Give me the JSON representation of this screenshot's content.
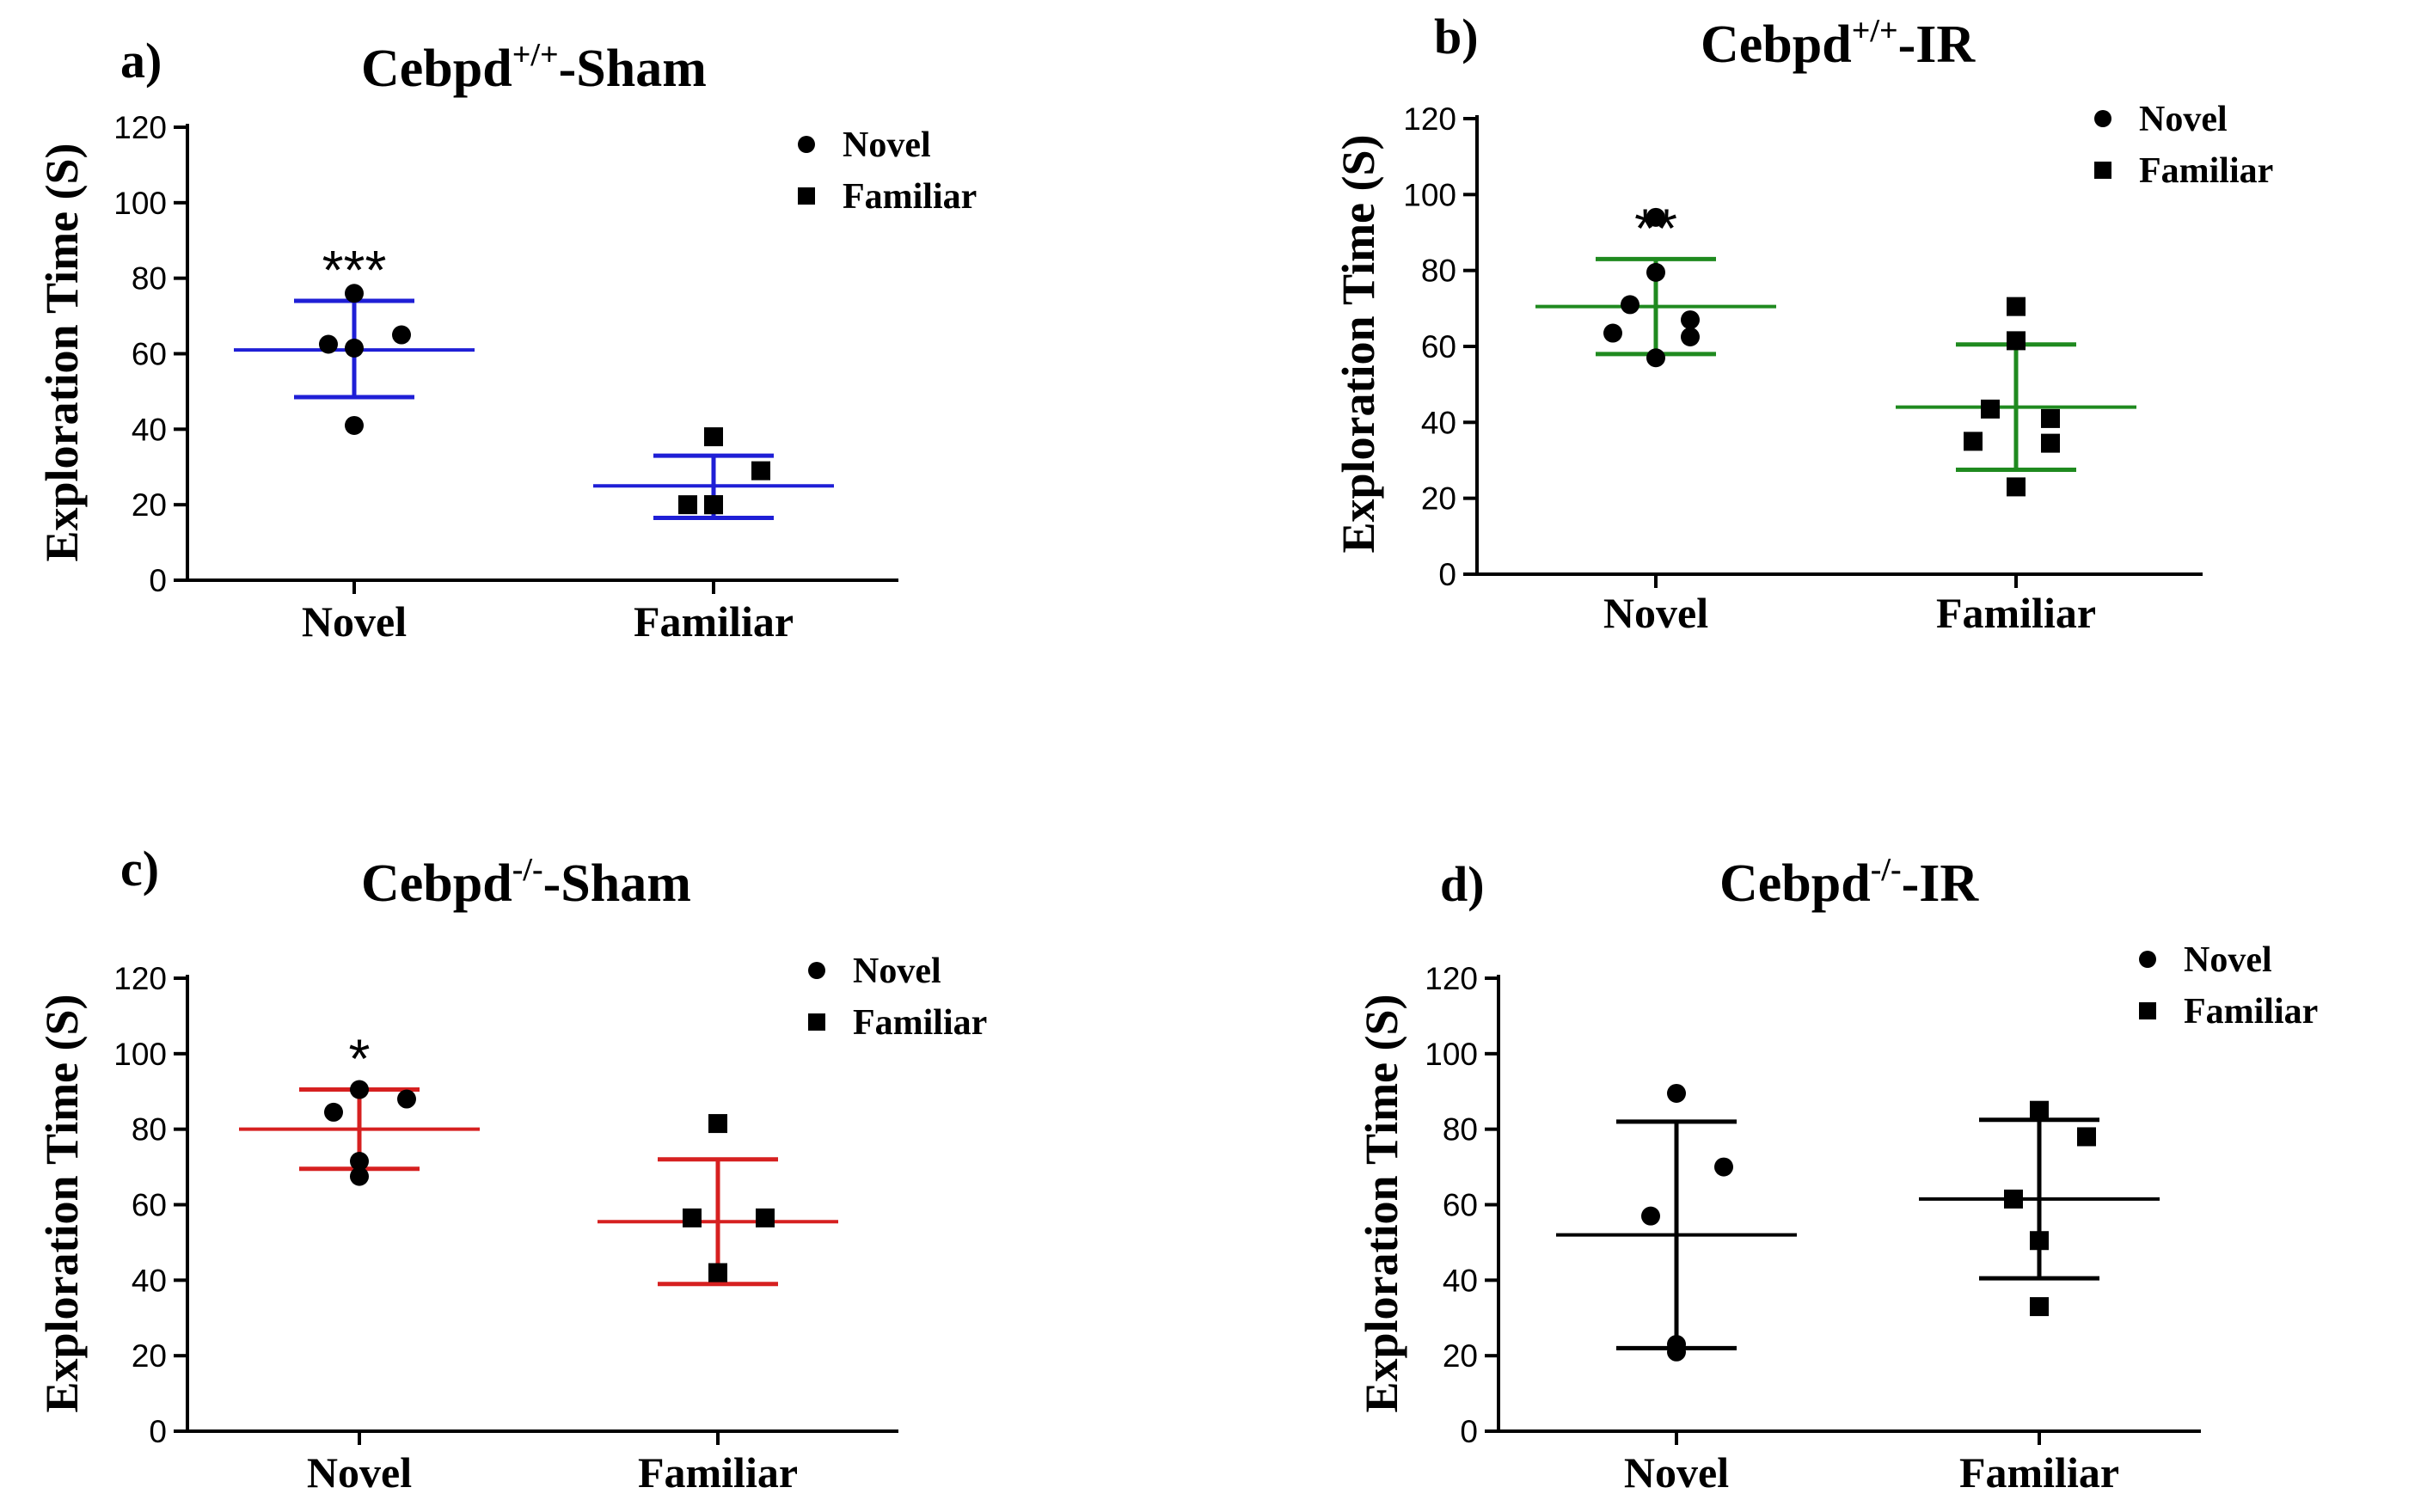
{
  "chart_data": [
    {
      "type": "scatter",
      "panel_label": "a)",
      "title": "Cebpd",
      "title_superscript": "+/+",
      "title_suffix": "-Sham",
      "ylabel": "Exploration Time  (S)",
      "xlabel": "",
      "ylim": [
        0,
        120
      ],
      "yticks": [
        0,
        20,
        40,
        60,
        80,
        100,
        120
      ],
      "categories": [
        "Novel",
        "Familiar"
      ],
      "color": "#1f1fd6",
      "series": [
        {
          "name": "Novel",
          "marker": "circle",
          "values": [
            76,
            65,
            62.5,
            61.5,
            41
          ],
          "mean": 61,
          "error_low": 48.5,
          "error_high": 74,
          "significance": "***"
        },
        {
          "name": "Familiar",
          "marker": "square",
          "values": [
            38,
            29,
            20,
            20,
            20
          ],
          "mean": 25,
          "error_low": 16.5,
          "error_high": 33,
          "significance": ""
        }
      ],
      "legend": [
        "Novel",
        "Familiar"
      ],
      "legend_position": "top-right"
    },
    {
      "type": "scatter",
      "panel_label": "b)",
      "title": "Cebpd",
      "title_superscript": "+/+",
      "title_suffix": "-IR",
      "ylabel": "Exploration Time  (S)",
      "xlabel": "",
      "ylim": [
        0,
        120
      ],
      "yticks": [
        0,
        20,
        40,
        60,
        80,
        100,
        120
      ],
      "categories": [
        "Novel",
        "Familiar"
      ],
      "color": "#1f8a1f",
      "series": [
        {
          "name": "Novel",
          "marker": "circle",
          "values": [
            94,
            79.5,
            71,
            67,
            63.5,
            62.5,
            57
          ],
          "mean": 70.5,
          "error_low": 58,
          "error_high": 83,
          "significance": "**"
        },
        {
          "name": "Familiar",
          "marker": "square",
          "values": [
            70.5,
            61.5,
            43.5,
            41,
            35,
            34.5,
            23
          ],
          "mean": 44,
          "error_low": 27.5,
          "error_high": 60.5,
          "significance": ""
        }
      ],
      "legend": [
        "Novel",
        "Familiar"
      ],
      "legend_position": "top-right"
    },
    {
      "type": "scatter",
      "panel_label": "c)",
      "title": "Cebpd",
      "title_superscript": "-/-",
      "title_suffix": "-Sham",
      "ylabel": "Exploration Time  (S)",
      "xlabel": "",
      "ylim": [
        0,
        120
      ],
      "yticks": [
        0,
        20,
        40,
        60,
        80,
        100,
        120
      ],
      "categories": [
        "Novel",
        "Familiar"
      ],
      "color": "#d62020",
      "series": [
        {
          "name": "Novel",
          "marker": "circle",
          "values": [
            90.5,
            88,
            84.5,
            71.5,
            67.5
          ],
          "mean": 80,
          "error_low": 69.5,
          "error_high": 90.5,
          "significance": "*"
        },
        {
          "name": "Familiar",
          "marker": "square",
          "values": [
            81.5,
            56.5,
            56.5,
            42,
            42
          ],
          "mean": 55.5,
          "error_low": 39,
          "error_high": 72,
          "significance": ""
        }
      ],
      "legend": [
        "Novel",
        "Familiar"
      ],
      "legend_position": "top-right"
    },
    {
      "type": "scatter",
      "panel_label": "d)",
      "title": "Cebpd",
      "title_superscript": "-/-",
      "title_suffix": "-IR",
      "ylabel": "Exploration Time  (S)",
      "xlabel": "",
      "ylim": [
        0,
        120
      ],
      "yticks": [
        0,
        20,
        40,
        60,
        80,
        100,
        120
      ],
      "categories": [
        "Novel",
        "Familiar"
      ],
      "color": "#000000",
      "series": [
        {
          "name": "Novel",
          "marker": "circle",
          "values": [
            89.5,
            70,
            57,
            23,
            21
          ],
          "mean": 52,
          "error_low": 22,
          "error_high": 82,
          "significance": ""
        },
        {
          "name": "Familiar",
          "marker": "square",
          "values": [
            85,
            78,
            61.5,
            50.5,
            33
          ],
          "mean": 61.5,
          "error_low": 40.5,
          "error_high": 82.5,
          "significance": ""
        }
      ],
      "legend": [
        "Novel",
        "Familiar"
      ],
      "legend_position": "top-right"
    }
  ]
}
